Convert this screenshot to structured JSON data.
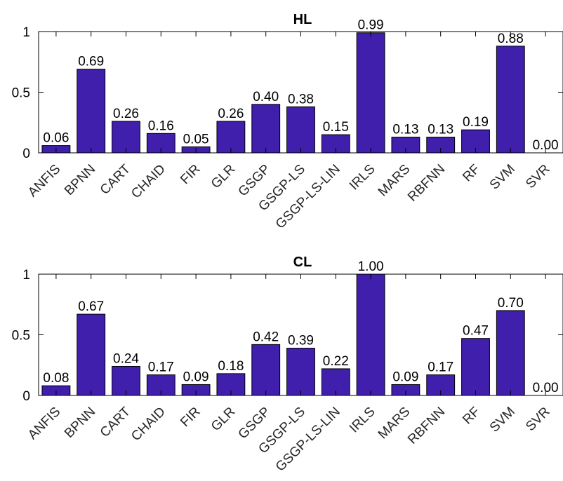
{
  "chart_data": [
    {
      "type": "bar",
      "title": "HL",
      "categories": [
        "ANFIS",
        "BPNN",
        "CART",
        "CHAID",
        "FIR",
        "GLR",
        "GSGP",
        "GSGP-LS",
        "GSGP-LS-LIN",
        "IRLS",
        "MARS",
        "RBFNN",
        "RF",
        "SVM",
        "SVR"
      ],
      "values": [
        0.06,
        0.69,
        0.26,
        0.16,
        0.05,
        0.26,
        0.4,
        0.38,
        0.15,
        0.99,
        0.13,
        0.13,
        0.19,
        0.88,
        0.0
      ],
      "data_labels": [
        "0.06",
        "0.69",
        "0.26",
        "0.16",
        "0.05",
        "0.26",
        "0.40",
        "0.38",
        "0.15",
        "0.99",
        "0.13",
        "0.13",
        "0.19",
        "0.88",
        "0.00"
      ],
      "ylim": [
        0,
        1
      ],
      "yticks": [
        0,
        0.5,
        1
      ],
      "ytick_labels": [
        "0",
        "0.5",
        "1"
      ],
      "bar_color": "#3F1FAB",
      "grid": false
    },
    {
      "type": "bar",
      "title": "CL",
      "categories": [
        "ANFIS",
        "BPNN",
        "CART",
        "CHAID",
        "FIR",
        "GLR",
        "GSGP",
        "GSGP-LS",
        "GSGP-LS-LIN",
        "IRLS",
        "MARS",
        "RBFNN",
        "RF",
        "SVM",
        "SVR"
      ],
      "values": [
        0.08,
        0.67,
        0.24,
        0.17,
        0.09,
        0.18,
        0.42,
        0.39,
        0.22,
        1.0,
        0.09,
        0.17,
        0.47,
        0.7,
        0.0
      ],
      "data_labels": [
        "0.08",
        "0.67",
        "0.24",
        "0.17",
        "0.09",
        "0.18",
        "0.42",
        "0.39",
        "0.22",
        "1.00",
        "0.09",
        "0.17",
        "0.47",
        "0.70",
        "0.00"
      ],
      "ylim": [
        0,
        1
      ],
      "yticks": [
        0,
        0.5,
        1
      ],
      "ytick_labels": [
        "0",
        "0.5",
        "1"
      ],
      "bar_color": "#3F1FAB",
      "grid": false
    }
  ]
}
